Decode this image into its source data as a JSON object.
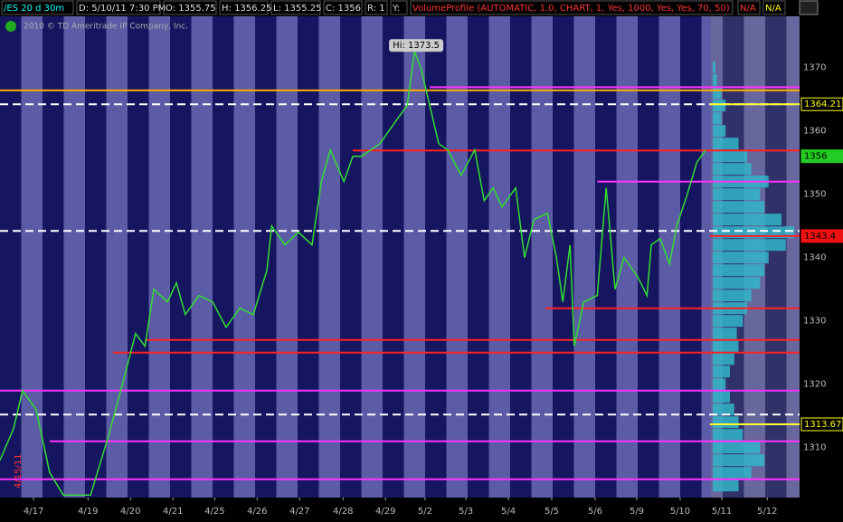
{
  "chart_data": {
    "type": "line",
    "header": [
      "/ES 20 d 30m",
      "D: 5/10/11 7:30 PM",
      "O: 1355.75",
      "H: 1356.25",
      "L: 1355.25",
      "C: 1356",
      "R: 1",
      "Y:",
      "VolumeProfile (AUTOMATIC, 1.0, CHART, 1, Yes, 1000, Yes, Yes, 70, 50)",
      "N/A",
      "N/A"
    ],
    "watermark": "2010 © TD Ameritrade IP Company, Inc.",
    "start_label": "4/15/11",
    "annotation": {
      "text": "Hi: 1373.5",
      "x": 9.0,
      "y": 1373.5
    },
    "xlim": [
      -0.79,
      18.02
    ],
    "xticks": [
      {
        "value": 0,
        "label": "4/17"
      },
      {
        "value": 1.28,
        "label": "4/19"
      },
      {
        "value": 2.28,
        "label": "4/20"
      },
      {
        "value": 3.28,
        "label": "4/21"
      },
      {
        "value": 4.26,
        "label": "4/25"
      },
      {
        "value": 5.26,
        "label": "4/26"
      },
      {
        "value": 6.26,
        "label": "4/27"
      },
      {
        "value": 7.28,
        "label": "4/28"
      },
      {
        "value": 8.28,
        "label": "4/29"
      },
      {
        "value": 9.21,
        "label": "5/2"
      },
      {
        "value": 10.17,
        "label": "5/3"
      },
      {
        "value": 11.17,
        "label": "5/4"
      },
      {
        "value": 12.19,
        "label": "5/5"
      },
      {
        "value": 13.21,
        "label": "5/6"
      },
      {
        "value": 14.19,
        "label": "5/9"
      },
      {
        "value": 15.21,
        "label": "5/10"
      },
      {
        "value": 16.19,
        "label": "5/11"
      },
      {
        "value": 17.26,
        "label": "5/12"
      }
    ],
    "ylim": [
      1302.1,
      1378.1
    ],
    "yticks": [
      1310,
      1320,
      1330,
      1340,
      1350,
      1360,
      1370
    ],
    "series": [
      {
        "name": "/ES",
        "color": "#33dd33",
        "x": [
          -0.79,
          -0.47,
          -0.26,
          0.06,
          0.38,
          0.7,
          1.34,
          1.77,
          2.09,
          2.4,
          2.62,
          2.83,
          3.15,
          3.36,
          3.57,
          3.89,
          4.21,
          4.53,
          4.85,
          5.17,
          5.49,
          5.6,
          5.91,
          6.23,
          6.55,
          6.77,
          6.98,
          7.3,
          7.51,
          7.72,
          8.15,
          8.57,
          8.79,
          8.96,
          9.11,
          9.32,
          9.53,
          9.74,
          10.06,
          10.38,
          10.6,
          10.81,
          11.02,
          11.34,
          11.55,
          11.77,
          12.09,
          12.3,
          12.45,
          12.62,
          12.72,
          12.94,
          13.26,
          13.47,
          13.68,
          13.89,
          14.21,
          14.43,
          14.53,
          14.74,
          14.96,
          15.13,
          15.38,
          15.6,
          15.81
        ],
        "values": [
          1308,
          1313,
          1319,
          1316,
          1306,
          1302.5,
          1302.5,
          1312,
          1320,
          1328,
          1326,
          1335,
          1333,
          1336,
          1331,
          1334,
          1333,
          1329,
          1332,
          1331,
          1338,
          1345,
          1342,
          1344,
          1342,
          1352,
          1357,
          1352,
          1356,
          1356,
          1358,
          1362,
          1364,
          1372.5,
          1370,
          1364,
          1358,
          1357,
          1353,
          1357,
          1349,
          1351,
          1348,
          1351,
          1340,
          1346,
          1347,
          1340,
          1333,
          1342,
          1326,
          1333,
          1334,
          1351,
          1335,
          1340,
          1337,
          1334,
          1342,
          1343,
          1339,
          1345,
          1350,
          1355,
          1357
        ]
      }
    ],
    "levels": [
      {
        "price": 1366.4,
        "color": "#ffaa00",
        "from": -0.79
      },
      {
        "price": 1366.9,
        "color": "#ff33ff",
        "from": 9.32
      },
      {
        "price": 1352,
        "color": "#ff33ff",
        "from": 13.26
      },
      {
        "price": 1319,
        "color": "#ff33ff",
        "from": -0.79
      },
      {
        "price": 1311,
        "color": "#ff33ff",
        "from": 0.38
      },
      {
        "price": 1305,
        "color": "#ff33ff",
        "from": -0.79
      },
      {
        "price": 1356.9,
        "color": "#ff2222",
        "from": 7.51
      },
      {
        "price": 1343.4,
        "color": "#ff2222",
        "from": 15.91
      },
      {
        "price": 1332,
        "color": "#ff2222",
        "from": 12.04
      },
      {
        "price": 1327,
        "color": "#ff2222",
        "from": 2.62
      },
      {
        "price": 1325,
        "color": "#ff2222",
        "from": 1.87
      },
      {
        "price": 1364.2,
        "color": "#ffffff",
        "from": -0.79,
        "dashed": true
      },
      {
        "price": 1344.2,
        "color": "#ffffff",
        "from": -0.79,
        "dashed": true
      },
      {
        "price": 1315.2,
        "color": "#ffffff",
        "from": -0.79,
        "dashed": true
      },
      {
        "price": 1364.21,
        "color": "#ffff33",
        "from": 15.91
      },
      {
        "price": 1313.67,
        "color": "#ffff33",
        "from": 15.91
      }
    ],
    "price_labels": [
      {
        "value": 1364.21,
        "label": "1364.21",
        "color": "#ffff00"
      },
      {
        "value": 1356,
        "label": "1356",
        "color": "#22cc22"
      },
      {
        "value": 1343.4,
        "label": "1343.4",
        "color": "#ee1111"
      },
      {
        "value": 1313.67,
        "label": "1313.67",
        "color": "#ffff00"
      }
    ],
    "volume_profile": {
      "color": "#33b5c8",
      "prices": [
        1304,
        1306,
        1308,
        1310,
        1312,
        1314,
        1316,
        1318,
        1320,
        1322,
        1324,
        1326,
        1328,
        1330,
        1332,
        1334,
        1336,
        1338,
        1340,
        1342,
        1344,
        1346,
        1348,
        1350,
        1352,
        1354,
        1356,
        1358,
        1360,
        1362,
        1364,
        1366,
        1368,
        1370
      ],
      "volumes": [
        30,
        45,
        60,
        55,
        35,
        30,
        25,
        20,
        15,
        20,
        25,
        30,
        28,
        35,
        40,
        45,
        55,
        60,
        65,
        85,
        95,
        80,
        60,
        55,
        65,
        45,
        40,
        30,
        15,
        10,
        15,
        10,
        5,
        3
      ]
    }
  }
}
